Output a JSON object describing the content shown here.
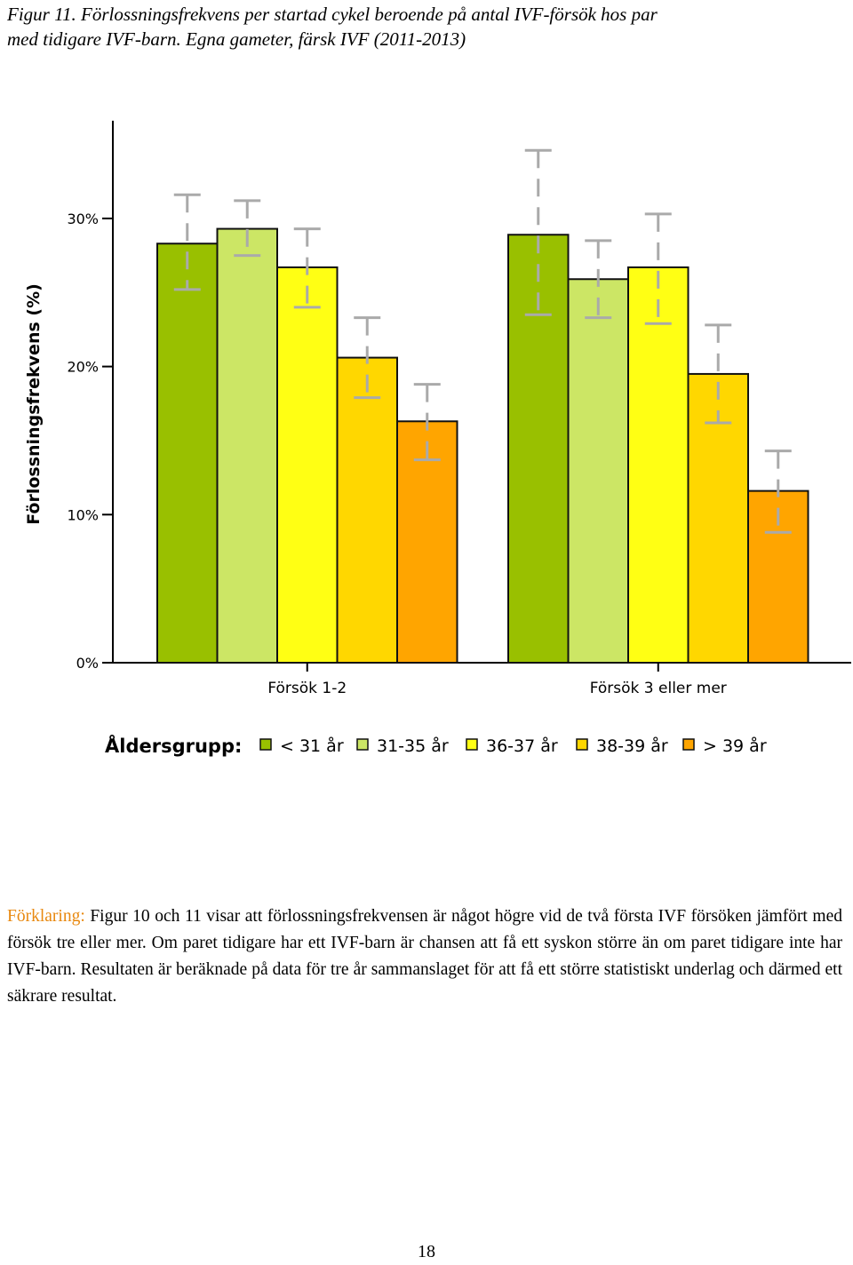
{
  "caption": {
    "line1": "Figur 11.  Förlossningsfrekvens per startad cykel beroende på antal IVF-försök hos par",
    "line2": "med tidigare IVF-barn. Egna gameter, färsk IVF (2011-2013)"
  },
  "chart_data": {
    "type": "bar",
    "title": "",
    "xlabel": "",
    "ylabel": "Förlossningsfrekvens (%)",
    "ylim": [
      0,
      36
    ],
    "y_ticks": [
      0,
      10,
      20,
      30
    ],
    "y_tick_labels": [
      "0%",
      "10%",
      "20%",
      "30%"
    ],
    "categories": [
      "Försök 1-2",
      "Försök 3 eller mer"
    ],
    "legend_title": "Åldersgrupp:",
    "legend_position": "bottom",
    "series": [
      {
        "name": "< 31 år",
        "color": "#99c000",
        "values": [
          28.3,
          28.9
        ],
        "err_low": [
          25.2,
          23.5
        ],
        "err_high": [
          31.6,
          34.6
        ]
      },
      {
        "name": "31-35 år",
        "color": "#cce665",
        "values": [
          29.3,
          25.9
        ],
        "err_low": [
          27.5,
          23.3
        ],
        "err_high": [
          31.2,
          28.5
        ]
      },
      {
        "name": "36-37 år",
        "color": "#ffff14",
        "values": [
          26.7,
          26.7
        ],
        "err_low": [
          24.0,
          22.9
        ],
        "err_high": [
          29.3,
          30.3
        ]
      },
      {
        "name": "38-39 år",
        "color": "#ffd700",
        "values": [
          20.6,
          19.5
        ],
        "err_low": [
          17.9,
          16.2
        ],
        "err_high": [
          23.3,
          22.8
        ]
      },
      {
        "name": "> 39 år",
        "color": "#ffa500",
        "values": [
          16.3,
          11.6
        ],
        "err_low": [
          13.7,
          8.8
        ],
        "err_high": [
          18.8,
          14.3
        ]
      }
    ]
  },
  "explanation": {
    "lead": "Förklaring:",
    "text": " Figur 10 och 11 visar att förlossningsfrekvensen är något högre vid de två första IVF försöken jämfört med försök tre eller mer. Om paret tidigare har ett IVF-barn är chansen att få ett syskon större än om paret tidigare inte har IVF-barn. Resultaten är beräknade på data för tre år sammanslaget för att få ett större statistiskt underlag och därmed ett säkrare resultat."
  },
  "page_number": "18"
}
